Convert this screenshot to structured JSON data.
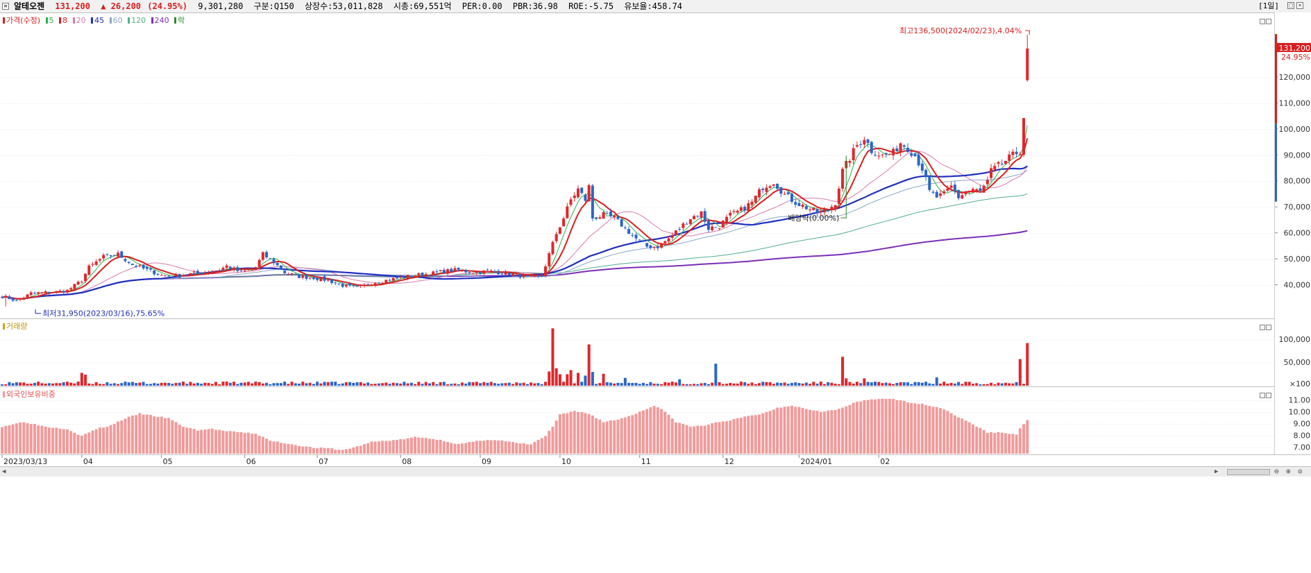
{
  "header": {
    "stock_name": "알테오젠",
    "price": "131,200",
    "change": "▲ 26,200",
    "change_pct": "(24.95%)",
    "volume": "9,301,280",
    "category": "구분:Q150",
    "shares": "상장수:53,011,828",
    "market_cap": "시총:69,551억",
    "per": "PER:0.00",
    "pbr": "PBR:36.98",
    "roe": "ROE:-5.75",
    "float_ratio": "유보율:458.74",
    "period_button": "[1일]"
  },
  "colors": {
    "up": "#e0262b",
    "down": "#2a66c8",
    "ma5": "#27b34a",
    "ma8": "#d81e1e",
    "ma20": "#d77ab0",
    "ma45": "#1f2fbf",
    "ma60": "#8aa7c8",
    "ma120": "#4fb08b",
    "ma240": "#7a2fb8",
    "foreign": "#f19a9a"
  },
  "price_panel": {
    "legend": [
      {
        "label": "가격(수정)",
        "color": "#d81e1e"
      },
      {
        "label": "5",
        "color": "#27b34a"
      },
      {
        "label": "8",
        "color": "#d81e1e"
      },
      {
        "label": "20",
        "color": "#d77ab0"
      },
      {
        "label": "45",
        "color": "#1f2fbf"
      },
      {
        "label": "60",
        "color": "#8aa7c8"
      },
      {
        "label": "120",
        "color": "#4fb08b"
      },
      {
        "label": "240",
        "color": "#7a2fb8"
      },
      {
        "label": "락",
        "color": "#2b8a2b"
      }
    ],
    "high_annotation": "최고136,500(2024/02/23),4.04%",
    "low_annotation": "최저31,950(2023/03/16),75.65%",
    "dividend_annotation": "배당락(0.00%)",
    "current_price_tag": "131,200",
    "current_pct_tag": "24.95%",
    "yaxis": [
      "120,000",
      "110,000",
      "100,000",
      "90,000",
      "80,000",
      "70,000",
      "60,000",
      "50,000",
      "40,000"
    ]
  },
  "volume_panel": {
    "legend": "거래량",
    "yaxis": [
      "100,000",
      "50,000",
      "×100"
    ]
  },
  "foreign_panel": {
    "legend": "외국인보유비중",
    "yaxis": [
      "11.00",
      "10.00",
      "9.00",
      "8.00",
      "7.00"
    ]
  },
  "xaxis": [
    "2023/03/13",
    "04",
    "05",
    "06",
    "07",
    "08",
    "09",
    "10",
    "11",
    "12",
    "2024/01",
    "02"
  ],
  "chart_data": {
    "type": "candlestick",
    "x_start": "2023/03/13",
    "x_end": "2024/02/23",
    "price_ylim": [
      30000,
      140000
    ],
    "volume_unit": "×100",
    "volume_ylim": [
      0,
      130000
    ],
    "foreign_ylim": [
      6.5,
      11.8
    ],
    "high": {
      "value": 136500,
      "date": "2024/02/23"
    },
    "low": {
      "value": 31950,
      "date": "2023/03/16"
    },
    "last_close": 131200,
    "close_anchors": [
      [
        0,
        36000
      ],
      [
        4,
        34000
      ],
      [
        8,
        37000
      ],
      [
        14,
        37500
      ],
      [
        18,
        38000
      ],
      [
        22,
        42000
      ],
      [
        24,
        47000
      ],
      [
        28,
        51000
      ],
      [
        32,
        52000
      ],
      [
        36,
        48000
      ],
      [
        40,
        46000
      ],
      [
        44,
        44000
      ],
      [
        48,
        43500
      ],
      [
        52,
        44500
      ],
      [
        56,
        45000
      ],
      [
        60,
        46000
      ],
      [
        62,
        47500
      ],
      [
        66,
        45000
      ],
      [
        70,
        47000
      ],
      [
        72,
        52000
      ],
      [
        75,
        49000
      ],
      [
        78,
        45000
      ],
      [
        82,
        43500
      ],
      [
        86,
        43000
      ],
      [
        90,
        42000
      ],
      [
        94,
        40000
      ],
      [
        98,
        39000
      ],
      [
        102,
        41000
      ],
      [
        106,
        42000
      ],
      [
        110,
        43000
      ],
      [
        114,
        44000
      ],
      [
        118,
        44500
      ],
      [
        122,
        45500
      ],
      [
        126,
        46000
      ],
      [
        130,
        45000
      ],
      [
        134,
        45500
      ],
      [
        138,
        45000
      ],
      [
        142,
        44000
      ],
      [
        146,
        43000
      ],
      [
        149,
        43500
      ],
      [
        151,
        52000
      ],
      [
        153,
        60000
      ],
      [
        155,
        66000
      ],
      [
        157,
        73000
      ],
      [
        159,
        77000
      ],
      [
        161,
        73000
      ],
      [
        162,
        78000
      ],
      [
        163,
        66000
      ],
      [
        166,
        67000
      ],
      [
        169,
        66000
      ],
      [
        172,
        62000
      ],
      [
        175,
        58000
      ],
      [
        178,
        55000
      ],
      [
        181,
        55000
      ],
      [
        184,
        58000
      ],
      [
        187,
        62000
      ],
      [
        190,
        66000
      ],
      [
        193,
        68000
      ],
      [
        195,
        62000
      ],
      [
        198,
        63000
      ],
      [
        201,
        67000
      ],
      [
        204,
        69000
      ],
      [
        207,
        72000
      ],
      [
        210,
        78000
      ],
      [
        213,
        80000
      ],
      [
        216,
        75000
      ],
      [
        219,
        72000
      ],
      [
        222,
        70000
      ],
      [
        225,
        68000
      ],
      [
        228,
        69000
      ],
      [
        230,
        72000
      ],
      [
        232,
        84000
      ],
      [
        234,
        89000
      ],
      [
        236,
        94000
      ],
      [
        238,
        97000
      ],
      [
        240,
        92000
      ],
      [
        243,
        90000
      ],
      [
        246,
        91000
      ],
      [
        248,
        95000
      ],
      [
        250,
        93000
      ],
      [
        252,
        90000
      ],
      [
        254,
        85000
      ],
      [
        256,
        76000
      ],
      [
        258,
        74000
      ],
      [
        260,
        75000
      ],
      [
        262,
        78000
      ],
      [
        264,
        74000
      ],
      [
        266,
        76000
      ],
      [
        268,
        77000
      ],
      [
        270,
        76000
      ],
      [
        272,
        80000
      ],
      [
        273,
        84000
      ],
      [
        275,
        86000
      ],
      [
        277,
        88000
      ],
      [
        279,
        90000
      ],
      [
        281,
        92000
      ],
      [
        282,
        105000
      ],
      [
        283,
        131200
      ]
    ],
    "volume_spikes": [
      [
        22,
        28000
      ],
      [
        23,
        24000
      ],
      [
        62,
        9000
      ],
      [
        151,
        31000
      ],
      [
        152,
        125000
      ],
      [
        153,
        38000
      ],
      [
        154,
        25000
      ],
      [
        156,
        25000
      ],
      [
        157,
        34000
      ],
      [
        159,
        28000
      ],
      [
        161,
        22000
      ],
      [
        162,
        90000
      ],
      [
        163,
        30000
      ],
      [
        166,
        26000
      ],
      [
        172,
        17000
      ],
      [
        187,
        14000
      ],
      [
        197,
        48000
      ],
      [
        232,
        63000
      ],
      [
        233,
        16000
      ],
      [
        238,
        16000
      ],
      [
        258,
        18000
      ],
      [
        281,
        58000
      ],
      [
        283,
        93000
      ]
    ],
    "foreign_anchors": [
      [
        0,
        8.8
      ],
      [
        6,
        9.2
      ],
      [
        12,
        8.8
      ],
      [
        18,
        8.6
      ],
      [
        22,
        8.0
      ],
      [
        26,
        8.6
      ],
      [
        30,
        8.9
      ],
      [
        34,
        9.5
      ],
      [
        38,
        9.9
      ],
      [
        42,
        9.7
      ],
      [
        46,
        9.5
      ],
      [
        50,
        8.8
      ],
      [
        54,
        8.5
      ],
      [
        58,
        8.6
      ],
      [
        62,
        8.4
      ],
      [
        66,
        8.3
      ],
      [
        70,
        8.2
      ],
      [
        74,
        7.6
      ],
      [
        78,
        7.4
      ],
      [
        82,
        7.2
      ],
      [
        86,
        7.0
      ],
      [
        90,
        6.95
      ],
      [
        94,
        6.8
      ],
      [
        98,
        7.1
      ],
      [
        102,
        7.5
      ],
      [
        106,
        7.6
      ],
      [
        110,
        7.7
      ],
      [
        114,
        7.9
      ],
      [
        118,
        7.8
      ],
      [
        122,
        7.6
      ],
      [
        126,
        7.3
      ],
      [
        130,
        7.5
      ],
      [
        134,
        7.7
      ],
      [
        138,
        7.6
      ],
      [
        142,
        7.4
      ],
      [
        146,
        7.3
      ],
      [
        150,
        8.0
      ],
      [
        152,
        8.8
      ],
      [
        154,
        9.8
      ],
      [
        158,
        10.1
      ],
      [
        162,
        9.9
      ],
      [
        166,
        9.2
      ],
      [
        170,
        9.4
      ],
      [
        174,
        9.8
      ],
      [
        178,
        10.3
      ],
      [
        180,
        10.6
      ],
      [
        182,
        10.3
      ],
      [
        186,
        9.2
      ],
      [
        190,
        8.8
      ],
      [
        194,
        8.9
      ],
      [
        198,
        9.2
      ],
      [
        202,
        9.4
      ],
      [
        206,
        9.7
      ],
      [
        210,
        9.9
      ],
      [
        214,
        10.4
      ],
      [
        218,
        10.6
      ],
      [
        222,
        10.3
      ],
      [
        226,
        10.1
      ],
      [
        230,
        10.2
      ],
      [
        232,
        10.4
      ],
      [
        236,
        10.9
      ],
      [
        240,
        11.1
      ],
      [
        244,
        11.2
      ],
      [
        248,
        11.0
      ],
      [
        252,
        10.8
      ],
      [
        256,
        10.6
      ],
      [
        260,
        10.3
      ],
      [
        264,
        9.6
      ],
      [
        268,
        9.0
      ],
      [
        272,
        8.3
      ],
      [
        276,
        8.3
      ],
      [
        280,
        8.1
      ],
      [
        281,
        8.7
      ],
      [
        283,
        9.3
      ]
    ]
  }
}
